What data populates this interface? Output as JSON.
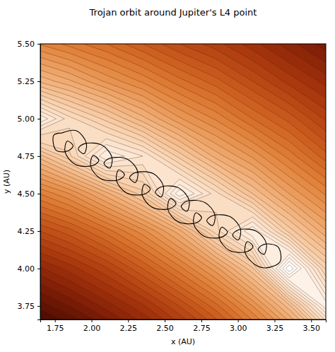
{
  "chart_data": {
    "type": "contour",
    "title": "Trojan orbit around Jupiter's L4 point",
    "xlabel": "x (AU)",
    "ylabel": "y (AU)",
    "xlim": [
      1.65,
      3.6
    ],
    "ylim": [
      3.66,
      5.5
    ],
    "xticks": [
      1.75,
      {
        "value": 2,
        "label": "2.00"
      },
      2.25,
      {
        "value": 2.5,
        "label": "2.50"
      },
      2.75,
      {
        "value": 3,
        "label": "3.00"
      },
      3.25,
      {
        "value": 3.5,
        "label": "3.50"
      }
    ],
    "yticks": [
      3.75,
      {
        "value": 4,
        "label": "4.00"
      },
      4.25,
      {
        "value": 4.5,
        "label": "4.50"
      },
      4.75,
      {
        "value": 5,
        "label": "5.00"
      },
      5.25,
      {
        "value": 5.5,
        "label": "5.50"
      }
    ],
    "color": "#000000",
    "x": [
      1.797,
      1.896,
      1.965,
      1.948,
      1.909,
      1.951,
      2.071,
      2.14,
      2.124,
      2.085,
      2.126,
      2.247,
      2.316,
      2.299,
      2.26,
      2.302,
      2.423,
      2.491,
      2.475,
      2.436,
      2.478,
      2.598,
      2.667,
      2.651,
      2.612,
      2.653,
      2.774,
      2.843,
      2.826,
      2.787,
      2.829,
      2.949,
      3.018,
      3.002,
      2.963,
      3.004,
      3.125,
      3.194,
      3.177,
      3.138,
      3.18,
      3.273,
      3.288,
      3.197,
      3.117,
      3.048,
      3.064,
      3.103,
      3.062,
      2.941,
      2.872,
      2.889,
      2.928,
      2.886,
      2.766,
      2.697,
      2.713,
      2.752,
      2.711,
      2.59,
      2.521,
      2.538,
      2.577,
      2.535,
      2.414,
      2.346,
      2.362,
      2.401,
      2.359,
      2.239,
      2.17,
      2.186,
      2.225,
      2.184,
      2.063,
      1.994,
      2.011,
      2.05,
      2.008,
      1.888,
      1.819,
      1.835,
      1.874,
      1.833,
      1.757,
      1.742,
      1.797
    ],
    "values": [
      4.905,
      4.92,
      4.837,
      4.766,
      4.799,
      4.833,
      4.824,
      4.741,
      4.67,
      4.703,
      4.737,
      4.729,
      4.646,
      4.574,
      4.607,
      4.641,
      4.633,
      4.55,
      4.478,
      4.511,
      4.546,
      4.537,
      4.454,
      4.382,
      4.415,
      4.45,
      4.441,
      4.358,
      4.287,
      4.32,
      4.354,
      4.345,
      4.262,
      4.191,
      4.224,
      4.258,
      4.25,
      4.167,
      4.095,
      4.128,
      4.162,
      4.145,
      4.047,
      4.005,
      4.026,
      4.109,
      4.18,
      4.147,
      4.113,
      4.121,
      4.204,
      4.276,
      4.243,
      4.209,
      4.217,
      4.3,
      4.372,
      4.339,
      4.304,
      4.313,
      4.396,
      4.467,
      4.435,
      4.4,
      4.409,
      4.492,
      4.563,
      4.53,
      4.496,
      4.505,
      4.588,
      4.659,
      4.626,
      4.592,
      4.6,
      4.683,
      4.755,
      4.722,
      4.687,
      4.696,
      4.779,
      4.851,
      4.818,
      4.783,
      4.791,
      4.89,
      4.905
    ],
    "cells": {
      "x": [
        1.6,
        1.85,
        2.1,
        2.35,
        2.6,
        2.85,
        3.1,
        3.35,
        3.6
      ],
      "y": [
        3.5,
        3.75,
        4.0,
        4.25,
        4.5,
        4.75,
        5.0,
        5.25,
        5.5
      ],
      "values": [
        [
          1.0,
          0.96,
          0.9,
          0.83,
          0.76,
          0.68,
          0.58,
          0.47,
          0.32
        ],
        [
          0.9,
          0.85,
          0.79,
          0.73,
          0.65,
          0.56,
          0.45,
          0.31,
          0.08
        ],
        [
          0.79,
          0.74,
          0.68,
          0.6,
          0.51,
          0.41,
          0.28,
          0.0,
          0.23
        ],
        [
          0.66,
          0.61,
          0.54,
          0.46,
          0.36,
          0.21,
          0.1,
          0.26,
          0.37
        ],
        [
          0.51,
          0.45,
          0.36,
          0.26,
          0.08,
          0.19,
          0.3,
          0.4,
          0.48
        ],
        [
          0.33,
          0.23,
          0.1,
          0.15,
          0.26,
          0.36,
          0.43,
          0.51,
          0.59
        ],
        [
          0.08,
          0.19,
          0.26,
          0.34,
          0.42,
          0.48,
          0.55,
          0.61,
          0.68
        ],
        [
          0.32,
          0.37,
          0.43,
          0.48,
          0.54,
          0.59,
          0.65,
          0.71,
          0.76
        ],
        [
          0.47,
          0.51,
          0.55,
          0.6,
          0.65,
          0.69,
          0.74,
          0.79,
          0.84
        ]
      ]
    }
  }
}
